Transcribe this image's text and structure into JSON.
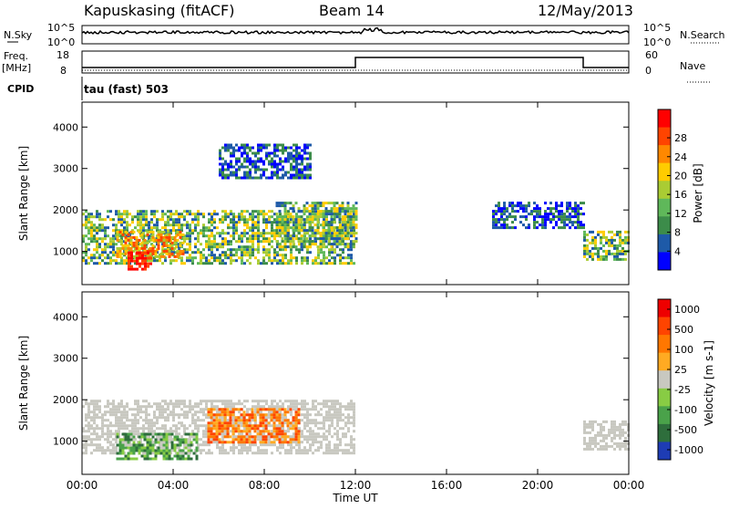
{
  "header": {
    "station": "Kapuskasing (fitACF)",
    "beam": "Beam 14",
    "date": "12/May/2013"
  },
  "strips": {
    "nsky_label": "N.Sky",
    "nsky_tick_top": "10^5",
    "nsky_tick_bottom": "10^0",
    "nsearch_label": "N.Search",
    "nsearch_tick_top": "10^5",
    "nsearch_tick_bottom": "10^0",
    "freq_label": "Freq.",
    "freq_unit": "[MHz]",
    "freq_tick_top": "18",
    "freq_tick_bottom": "8",
    "nave_label": "Nave",
    "nave_tick_top": "60",
    "nave_tick_bottom": "0",
    "cpid_label": "CPID",
    "cpid_text": "tau (fast) 503"
  },
  "chart_data": [
    {
      "type": "heatmap",
      "name": "power",
      "ylabel": "Slant Range [km]",
      "yticks": [
        "1000",
        "2000",
        "3000",
        "4000"
      ],
      "ylim": [
        200,
        4600
      ],
      "xlim_hours": [
        0,
        24
      ],
      "colorbar": {
        "label": "Power [dB]",
        "ticks": [
          "4",
          "8",
          "12",
          "16",
          "20",
          "24",
          "28"
        ],
        "colors": [
          "#0000ff",
          "#1e5aa8",
          "#3c8c4a",
          "#5fb85a",
          "#aacc33",
          "#ffcc00",
          "#ff8800",
          "#ff4400",
          "#ff0000"
        ]
      },
      "regions": [
        {
          "t0": 0.0,
          "t1": 12.0,
          "r0": 700,
          "r1": 2000,
          "level": "mid"
        },
        {
          "t0": 1.5,
          "t1": 4.5,
          "r0": 900,
          "r1": 1500,
          "level": "high"
        },
        {
          "t0": 2.0,
          "t1": 3.0,
          "r0": 600,
          "r1": 1000,
          "level": "max"
        },
        {
          "t0": 8.5,
          "t1": 12.0,
          "r0": 1100,
          "r1": 2200,
          "level": "mid"
        },
        {
          "t0": 22.0,
          "t1": 24.0,
          "r0": 800,
          "r1": 1500,
          "level": "mid"
        },
        {
          "t0": 6.0,
          "t1": 10.0,
          "r0": 2800,
          "r1": 3600,
          "level": "low"
        },
        {
          "t0": 18.0,
          "t1": 22.0,
          "r0": 1600,
          "r1": 2200,
          "level": "low"
        }
      ]
    },
    {
      "type": "heatmap",
      "name": "velocity",
      "ylabel": "Slant Range [km]",
      "yticks": [
        "1000",
        "2000",
        "3000",
        "4000"
      ],
      "ylim": [
        200,
        4600
      ],
      "xlim_hours": [
        0,
        24
      ],
      "colorbar": {
        "label": "Velocity [m s-1]",
        "ticks": [
          "1000",
          "500",
          "100",
          "25",
          "-25",
          "-100",
          "-500",
          "-1000"
        ],
        "colors": [
          "#1e3cb4",
          "#2e6e3c",
          "#4aa24a",
          "#88cc44",
          "#c8c8c0",
          "#ffaa22",
          "#ff7700",
          "#ff4400",
          "#ee0000"
        ]
      },
      "regions": [
        {
          "t0": 0.0,
          "t1": 12.0,
          "r0": 700,
          "r1": 2000,
          "level": "ground"
        },
        {
          "t0": 1.5,
          "t1": 5.0,
          "r0": 600,
          "r1": 1200,
          "level": "toward"
        },
        {
          "t0": 5.5,
          "t1": 9.5,
          "r0": 1000,
          "r1": 1800,
          "level": "away"
        },
        {
          "t0": 22.0,
          "t1": 24.0,
          "r0": 800,
          "r1": 1500,
          "level": "ground"
        }
      ]
    }
  ],
  "xaxis": {
    "ticks": [
      "00:00",
      "04:00",
      "08:00",
      "12:00",
      "16:00",
      "20:00",
      "00:00"
    ],
    "label": "Time UT"
  }
}
